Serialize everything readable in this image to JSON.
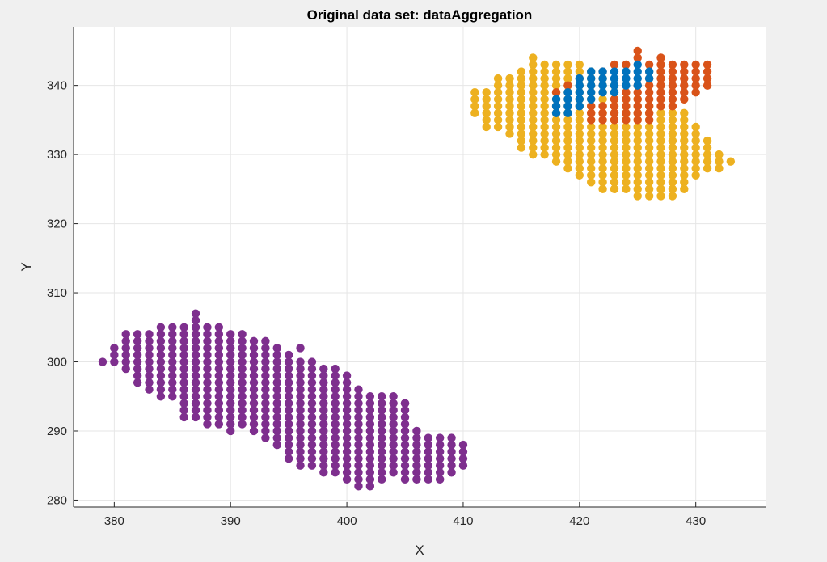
{
  "window": {
    "background_color": "#f0f0f0"
  },
  "chart_data": {
    "type": "scatter",
    "title": "Original data set: dataAggregation",
    "xlabel": "X",
    "ylabel": "Y",
    "xlim": [
      376.5,
      436
    ],
    "ylim": [
      279,
      348.5
    ],
    "xticks": [
      380,
      390,
      400,
      410,
      420,
      430
    ],
    "yticks": [
      280,
      290,
      300,
      310,
      320,
      330,
      340
    ],
    "grid": true,
    "box": "left-bottom-only",
    "background_color": "#ffffff",
    "grid_color": "#e6e6e6",
    "axis_color": "#262626",
    "series": [
      {
        "color": "#7e2f8e",
        "columns": [
          [
            379,
            300,
            300
          ],
          [
            380,
            300,
            302
          ],
          [
            381,
            299,
            304
          ],
          [
            382,
            297,
            304
          ],
          [
            383,
            296,
            304
          ],
          [
            384,
            295,
            305
          ],
          [
            385,
            295,
            305
          ],
          [
            386,
            292,
            305
          ],
          [
            387,
            292,
            307
          ],
          [
            388,
            291,
            305
          ],
          [
            389,
            291,
            305
          ],
          [
            390,
            290,
            304
          ],
          [
            391,
            291,
            304
          ],
          [
            392,
            290,
            303
          ],
          [
            393,
            289,
            303
          ],
          [
            394,
            288,
            302
          ],
          [
            395,
            286,
            301
          ],
          [
            396,
            285,
            300
          ],
          [
            397,
            285,
            300
          ],
          [
            398,
            284,
            299
          ],
          [
            399,
            284,
            299
          ],
          [
            400,
            283,
            298
          ],
          [
            401,
            282,
            296
          ],
          [
            402,
            282,
            295
          ],
          [
            403,
            283,
            295
          ],
          [
            404,
            284,
            295
          ],
          [
            405,
            283,
            294
          ],
          [
            406,
            283,
            290
          ],
          [
            407,
            283,
            289
          ],
          [
            408,
            283,
            289
          ],
          [
            409,
            284,
            289
          ],
          [
            410,
            285,
            288
          ]
        ],
        "points": [
          [
            396,
            302
          ],
          [
            405,
            294
          ]
        ]
      },
      {
        "color": "#edb120",
        "columns": [
          [
            411,
            336,
            339
          ],
          [
            412,
            334,
            339
          ],
          [
            413,
            334,
            341
          ],
          [
            414,
            333,
            341
          ],
          [
            415,
            331,
            342
          ],
          [
            416,
            330,
            344
          ],
          [
            417,
            330,
            343
          ],
          [
            418,
            329,
            343
          ],
          [
            419,
            328,
            343
          ],
          [
            420,
            327,
            343
          ],
          [
            421,
            326,
            342
          ],
          [
            422,
            325,
            341
          ],
          [
            423,
            325,
            340
          ],
          [
            424,
            325,
            339
          ],
          [
            425,
            324,
            338
          ],
          [
            426,
            324,
            337
          ],
          [
            427,
            324,
            336
          ],
          [
            428,
            324,
            336
          ],
          [
            429,
            325,
            336
          ],
          [
            430,
            327,
            334
          ],
          [
            431,
            328,
            332
          ],
          [
            432,
            328,
            330
          ],
          [
            433,
            329,
            329
          ]
        ],
        "points": []
      },
      {
        "color": "#d95319",
        "columns": [
          [
            418,
            339,
            339
          ],
          [
            419,
            340,
            340
          ],
          [
            421,
            335,
            337
          ],
          [
            422,
            335,
            337
          ],
          [
            423,
            335,
            338
          ],
          [
            424,
            335,
            339
          ],
          [
            425,
            335,
            340
          ],
          [
            426,
            335,
            343
          ],
          [
            427,
            337,
            344
          ],
          [
            428,
            337,
            343
          ],
          [
            429,
            338,
            343
          ],
          [
            430,
            339,
            343
          ],
          [
            431,
            340,
            343
          ]
        ],
        "points": [
          [
            422,
            342
          ],
          [
            423,
            343
          ],
          [
            424,
            343
          ],
          [
            425,
            344
          ],
          [
            425,
            345
          ]
        ]
      },
      {
        "color": "#0072bd",
        "columns": [
          [
            418,
            336,
            338
          ],
          [
            419,
            336,
            339
          ],
          [
            420,
            337,
            341
          ],
          [
            421,
            338,
            342
          ],
          [
            422,
            339,
            342
          ],
          [
            423,
            339,
            342
          ],
          [
            424,
            340,
            342
          ],
          [
            425,
            340,
            343
          ],
          [
            426,
            341,
            342
          ]
        ],
        "points": []
      }
    ]
  }
}
